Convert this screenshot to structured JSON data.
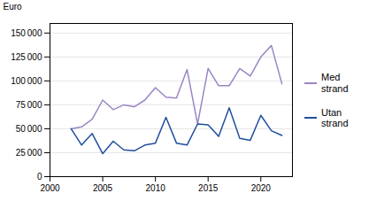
{
  "chart_data": {
    "type": "line",
    "x": [
      2002,
      2003,
      2004,
      2005,
      2006,
      2007,
      2008,
      2009,
      2010,
      2011,
      2012,
      2013,
      2014,
      2015,
      2016,
      2017,
      2018,
      2019,
      2020,
      2021,
      2022
    ],
    "series": [
      {
        "name": "Med\nstrand",
        "color": "#9b85c4",
        "values": [
          50000,
          52000,
          60000,
          80000,
          70000,
          75000,
          73000,
          80000,
          93000,
          83000,
          82000,
          112000,
          55000,
          113000,
          95000,
          95000,
          113000,
          105000,
          125000,
          137000,
          97000
        ]
      },
      {
        "name": "Utan\nstrand",
        "color": "#1f4e9e",
        "values": [
          50000,
          33000,
          45000,
          24000,
          37000,
          28000,
          27000,
          33000,
          35000,
          62000,
          35000,
          33000,
          55000,
          54000,
          42000,
          72000,
          40000,
          38000,
          64000,
          48000,
          43000
        ]
      }
    ],
    "ylabel": "Euro",
    "xlim": [
      2000,
      2023
    ],
    "xticks": [
      2000,
      2005,
      2010,
      2015,
      2020
    ],
    "ylim": [
      0,
      160000
    ],
    "yticks": [
      0,
      {
        "value": 25000,
        "label": "25 000"
      },
      {
        "value": 50000,
        "label": "50 000"
      },
      {
        "value": 75000,
        "label": "75 000"
      },
      {
        "value": 100000,
        "label": "100 000"
      },
      {
        "value": 125000,
        "label": "125 000"
      },
      {
        "value": 150000,
        "label": "150 000"
      }
    ],
    "grid": true
  }
}
